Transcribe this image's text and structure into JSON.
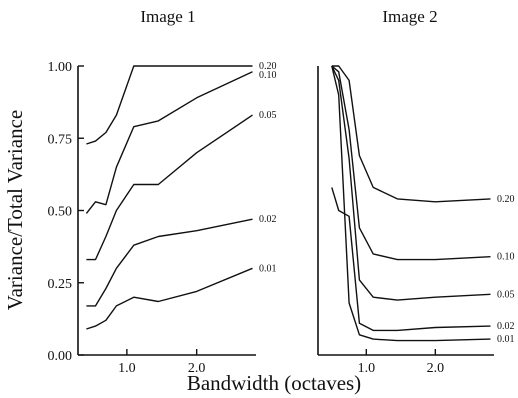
{
  "figure": {
    "ylabel": "Variance/Total Variance",
    "xlabel": "Bandwidth (octaves)"
  },
  "chart_data": [
    {
      "type": "line",
      "title": "Image 1",
      "ylim": [
        0,
        1.0
      ],
      "xlim": [
        0.3,
        2.85
      ],
      "yticks": [
        0,
        0.25,
        0.5,
        0.75,
        1.0
      ],
      "ytick_labels": [
        "0.00",
        "0.25",
        "0.50",
        "0.75",
        "1.00"
      ],
      "xticks": [
        1.0,
        2.0
      ],
      "xtick_labels": [
        "1.0",
        "2.0"
      ],
      "series": [
        {
          "name": "0.20",
          "x": [
            0.42,
            0.55,
            0.7,
            0.85,
            1.1,
            1.45,
            2.0,
            2.8
          ],
          "y": [
            0.73,
            0.74,
            0.77,
            0.83,
            1.0,
            1.0,
            1.0,
            1.0
          ]
        },
        {
          "name": "0.10",
          "x": [
            0.42,
            0.55,
            0.7,
            0.85,
            1.1,
            1.45,
            2.0,
            2.8
          ],
          "y": [
            0.49,
            0.53,
            0.52,
            0.65,
            0.79,
            0.81,
            0.89,
            0.98
          ]
        },
        {
          "name": "0.05",
          "x": [
            0.42,
            0.55,
            0.7,
            0.85,
            1.1,
            1.45,
            2.0,
            2.8
          ],
          "y": [
            0.33,
            0.33,
            0.41,
            0.5,
            0.59,
            0.59,
            0.7,
            0.83
          ]
        },
        {
          "name": "0.02",
          "x": [
            0.42,
            0.55,
            0.7,
            0.85,
            1.1,
            1.45,
            2.0,
            2.8
          ],
          "y": [
            0.17,
            0.17,
            0.23,
            0.3,
            0.38,
            0.41,
            0.43,
            0.47
          ]
        },
        {
          "name": "0.01",
          "x": [
            0.42,
            0.55,
            0.7,
            0.85,
            1.1,
            1.45,
            2.0,
            2.8
          ],
          "y": [
            0.09,
            0.1,
            0.12,
            0.17,
            0.2,
            0.185,
            0.22,
            0.3
          ]
        }
      ]
    },
    {
      "type": "line",
      "title": "Image 2",
      "ylim": [
        0,
        1.0
      ],
      "xlim": [
        0.3,
        2.85
      ],
      "xticks": [
        1.0,
        2.0
      ],
      "xtick_labels": [
        "1.0",
        "2.0"
      ],
      "series": [
        {
          "name": "0.20",
          "x": [
            0.5,
            0.6,
            0.75,
            0.9,
            1.1,
            1.45,
            2.0,
            2.8
          ],
          "y": [
            1.0,
            1.0,
            0.95,
            0.69,
            0.58,
            0.54,
            0.53,
            0.54
          ]
        },
        {
          "name": "0.10",
          "x": [
            0.5,
            0.6,
            0.75,
            0.9,
            1.1,
            1.45,
            2.0,
            2.8
          ],
          "y": [
            1.0,
            0.98,
            0.78,
            0.44,
            0.35,
            0.33,
            0.33,
            0.34
          ]
        },
        {
          "name": "0.05",
          "x": [
            0.5,
            0.6,
            0.75,
            0.9,
            1.1,
            1.45,
            2.0,
            2.8
          ],
          "y": [
            1.0,
            0.95,
            0.68,
            0.26,
            0.2,
            0.19,
            0.2,
            0.21
          ]
        },
        {
          "name": "0.02",
          "x": [
            0.5,
            0.6,
            0.75,
            0.9,
            1.1,
            1.45,
            2.0,
            2.8
          ],
          "y": [
            0.58,
            0.5,
            0.48,
            0.11,
            0.085,
            0.085,
            0.095,
            0.1
          ]
        },
        {
          "name": "0.01",
          "x": [
            0.5,
            0.6,
            0.75,
            0.9,
            1.1,
            1.45,
            2.0,
            2.8
          ],
          "y": [
            1.0,
            0.9,
            0.18,
            0.07,
            0.055,
            0.05,
            0.05,
            0.055
          ]
        }
      ]
    }
  ]
}
